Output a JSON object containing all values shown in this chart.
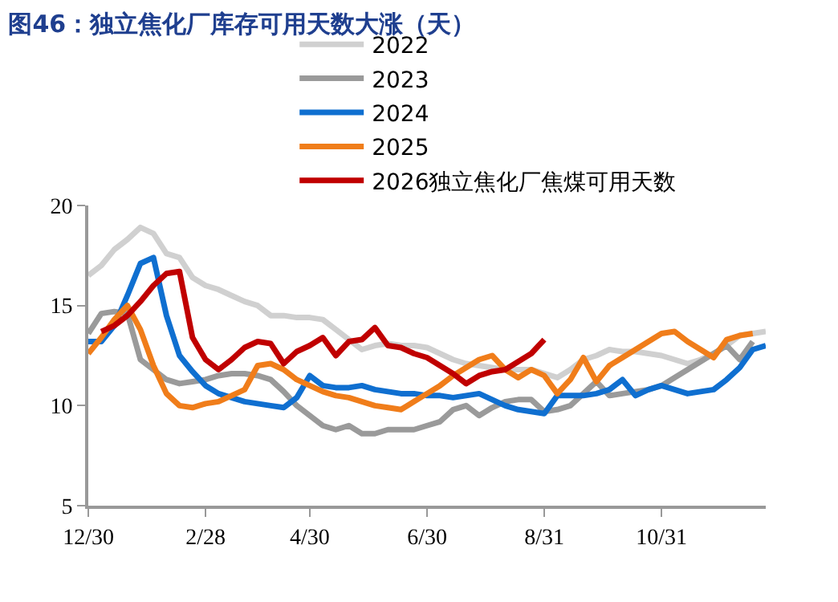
{
  "chart_data": {
    "type": "line",
    "title": "图46：独立焦化厂库存可用天数大涨（天）",
    "categories": [
      "12/30",
      null,
      null,
      null,
      null,
      null,
      null,
      null,
      null,
      "2/28",
      null,
      null,
      null,
      null,
      null,
      null,
      null,
      "4/30",
      null,
      null,
      null,
      null,
      null,
      null,
      null,
      null,
      "6/30",
      null,
      null,
      null,
      null,
      null,
      null,
      null,
      null,
      "8/31",
      null,
      null,
      null,
      null,
      null,
      null,
      null,
      null,
      "10/31",
      null,
      null,
      null,
      null,
      null,
      null,
      null,
      null
    ],
    "ylim": [
      5,
      20
    ],
    "yticks": [
      5,
      10,
      15,
      20
    ],
    "grid": false,
    "legend": "top",
    "marker": "none",
    "line_style": "solid",
    "series": [
      {
        "name": "2022",
        "color": "#d0d0d0",
        "values": [
          16.5,
          17.0,
          17.8,
          18.3,
          18.9,
          18.6,
          17.6,
          17.4,
          16.4,
          16.0,
          15.8,
          15.5,
          15.2,
          15.0,
          14.5,
          14.5,
          14.4,
          14.4,
          14.3,
          13.8,
          13.3,
          12.8,
          13.0,
          13.1,
          13.0,
          13.0,
          12.9,
          12.6,
          12.3,
          12.1,
          12.0,
          11.9,
          11.8,
          11.8,
          11.8,
          11.6,
          11.4,
          11.8,
          12.3,
          12.5,
          12.8,
          12.7,
          12.7,
          12.6,
          12.5,
          12.3,
          12.1,
          12.3,
          12.6,
          13.0,
          13.5,
          13.6,
          13.7
        ]
      },
      {
        "name": "2023",
        "color": "#9a9a9a",
        "values": [
          13.6,
          14.6,
          14.7,
          14.6,
          12.3,
          11.8,
          11.3,
          11.1,
          11.2,
          11.3,
          11.5,
          11.6,
          11.6,
          11.5,
          11.3,
          10.7,
          10.0,
          9.5,
          9.0,
          8.8,
          9.0,
          8.6,
          8.6,
          8.8,
          8.8,
          8.8,
          9.0,
          9.2,
          9.8,
          10.0,
          9.5,
          9.9,
          10.2,
          10.3,
          10.3,
          9.7,
          9.8,
          10.0,
          10.6,
          11.2,
          10.5,
          10.6,
          10.7,
          10.8,
          11.0,
          11.4,
          11.8,
          12.2,
          12.6,
          13.0,
          12.3,
          13.2,
          null
        ]
      },
      {
        "name": "2024",
        "color": "#0f6fd0",
        "values": [
          13.2,
          13.2,
          14.0,
          15.5,
          17.1,
          17.4,
          14.5,
          12.5,
          11.7,
          11.0,
          10.6,
          10.4,
          10.2,
          10.1,
          10.0,
          9.9,
          10.4,
          11.5,
          11.0,
          10.9,
          10.9,
          11.0,
          10.8,
          10.7,
          10.6,
          10.6,
          10.5,
          10.5,
          10.4,
          10.5,
          10.6,
          10.3,
          10.0,
          9.8,
          9.7,
          9.6,
          10.5,
          10.5,
          10.5,
          10.6,
          10.8,
          11.3,
          10.5,
          10.8,
          11.0,
          10.8,
          10.6,
          10.7,
          10.8,
          11.3,
          11.9,
          12.8,
          13.0
        ]
      },
      {
        "name": "2025",
        "color": "#f07d1a",
        "values": [
          12.6,
          13.4,
          14.3,
          15.0,
          13.8,
          12.0,
          10.6,
          10.0,
          9.9,
          10.1,
          10.2,
          10.5,
          10.8,
          12.0,
          12.1,
          11.8,
          11.3,
          11.0,
          10.7,
          10.5,
          10.4,
          10.2,
          10.0,
          9.9,
          9.8,
          10.2,
          10.6,
          11.0,
          11.5,
          11.9,
          12.3,
          12.5,
          11.8,
          11.4,
          11.8,
          11.5,
          10.6,
          11.3,
          12.4,
          11.2,
          12.0,
          12.4,
          12.8,
          13.2,
          13.6,
          13.7,
          13.2,
          12.8,
          12.4,
          13.3,
          13.5,
          13.6,
          null
        ]
      },
      {
        "name": "2026独立焦化厂焦煤可用天数",
        "color": "#c00000",
        "values": [
          null,
          13.7,
          14.0,
          14.5,
          15.2,
          16.0,
          16.6,
          16.7,
          13.4,
          12.3,
          11.8,
          12.3,
          12.9,
          13.2,
          13.1,
          12.1,
          12.7,
          13.0,
          13.4,
          12.5,
          13.2,
          13.3,
          13.9,
          13.0,
          12.9,
          12.6,
          12.4,
          12.0,
          11.6,
          11.1,
          11.5,
          11.7,
          11.8,
          12.2,
          12.6,
          13.3,
          null,
          null,
          null,
          null,
          null,
          null,
          null,
          null,
          null,
          null,
          null,
          null,
          null,
          null,
          null,
          null,
          null
        ]
      }
    ]
  }
}
